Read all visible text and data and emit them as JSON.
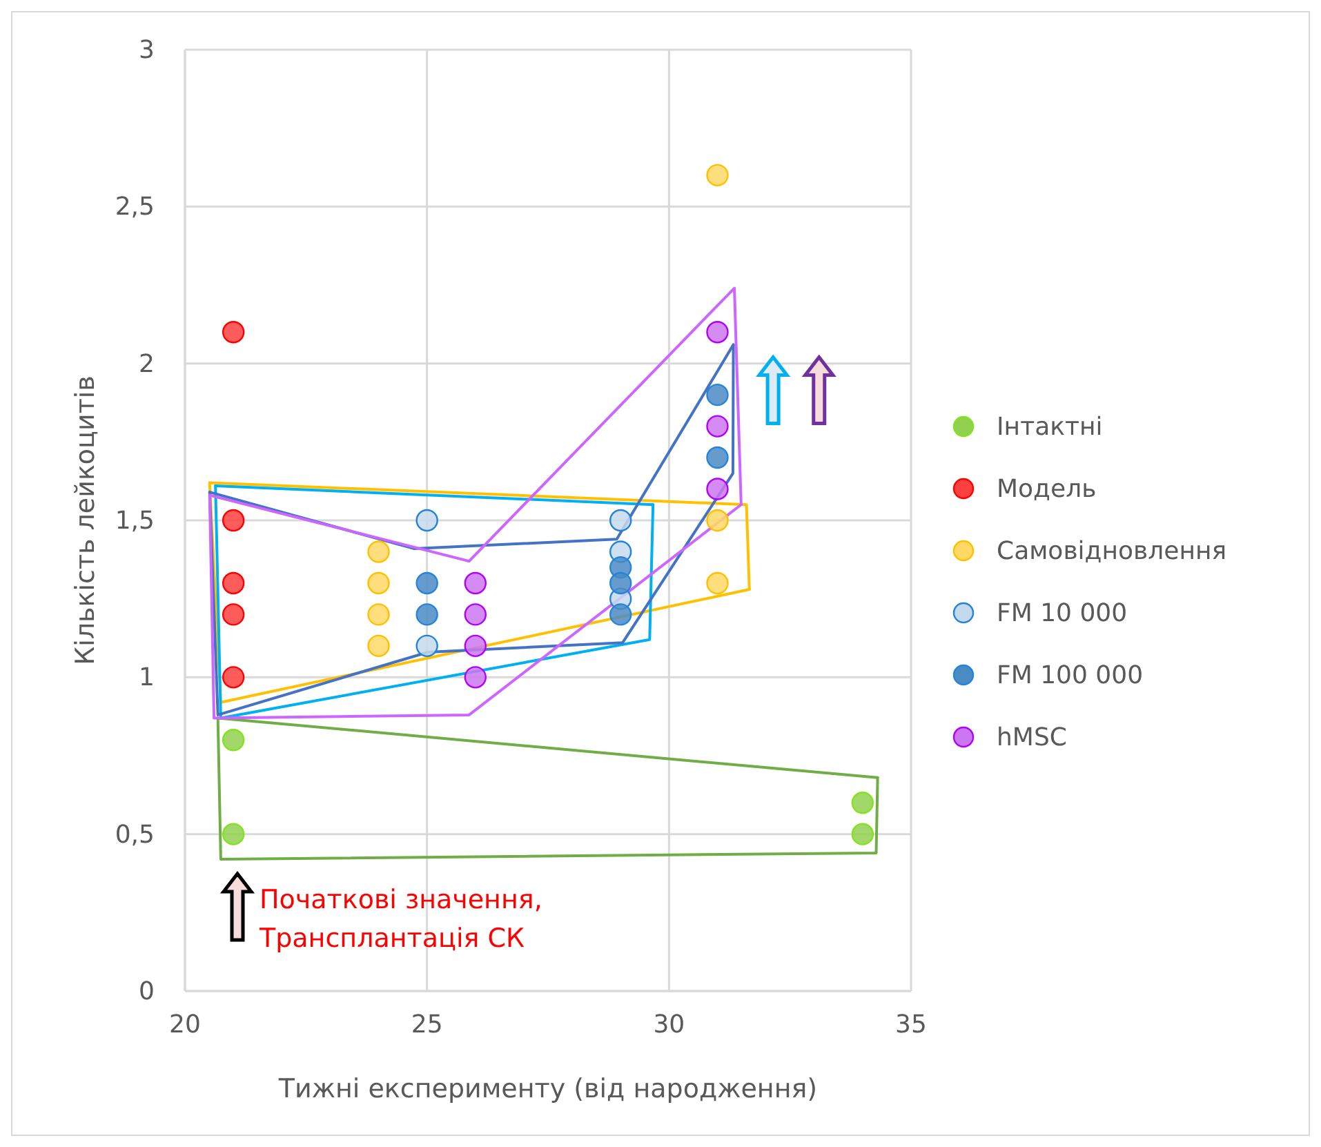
{
  "chart_data": {
    "type": "scatter",
    "xlabel": "Тижні експерименту (від народження)",
    "ylabel": "Кількість лейкоцитів",
    "xlim": [
      20,
      35
    ],
    "xticks": [
      20,
      25,
      30,
      35
    ],
    "ylim": [
      0,
      3
    ],
    "yticks": [
      0,
      {
        "value": 0.5,
        "label": "0,5"
      },
      1,
      {
        "value": 1.5,
        "label": "1,5"
      },
      2,
      {
        "value": 2.5,
        "label": "2,5"
      },
      3
    ],
    "grid": true,
    "legend": "right",
    "marker": "circle",
    "annotations": [
      "Початкові значення, Трансплантація СК"
    ],
    "series": [
      {
        "type": "line",
        "marker": "none",
        "color": "#70ad47",
        "x": [
          20.68,
          34.31
        ],
        "values": [
          0.87,
          0.68
        ]
      },
      {
        "type": "line",
        "marker": "none",
        "color": "#70ad47",
        "x": [
          20.68,
          20.74,
          34.28,
          34.31
        ],
        "values": [
          0.87,
          0.42,
          0.44,
          0.68
        ]
      },
      {
        "type": "line",
        "marker": "none",
        "color": "#ffc000",
        "x": [
          20.51,
          31.6,
          31.66
        ],
        "values": [
          1.62,
          1.55,
          1.28
        ]
      },
      {
        "type": "line",
        "marker": "none",
        "color": "#ffc000",
        "x": [
          20.51,
          20.74,
          31.66
        ],
        "values": [
          1.62,
          0.92,
          1.28
        ]
      },
      {
        "type": "line",
        "marker": "none",
        "color": "#00b0f0",
        "x": [
          20.63,
          29.67
        ],
        "values": [
          1.61,
          1.55
        ]
      },
      {
        "type": "line",
        "marker": "none",
        "color": "#00b0f0",
        "x": [
          20.63,
          20.74,
          29.6,
          29.67
        ],
        "values": [
          1.61,
          0.87,
          1.12,
          1.55
        ]
      },
      {
        "type": "line",
        "marker": "none",
        "color": "#4472c4",
        "x": [
          20.51,
          24.73,
          28.92,
          31.33
        ],
        "values": [
          1.59,
          1.41,
          1.44,
          2.06
        ]
      },
      {
        "type": "line",
        "marker": "none",
        "color": "#4472c4",
        "x": [
          20.51,
          20.68,
          25.02,
          29.04,
          31.32,
          31.33
        ],
        "values": [
          1.59,
          0.88,
          1.08,
          1.11,
          1.65,
          2.06
        ]
      },
      {
        "type": "line",
        "marker": "none",
        "color": "#cc66ff",
        "x": [
          20.51,
          25.87,
          31.35,
          31.49
        ],
        "values": [
          1.58,
          1.37,
          2.24,
          1.55
        ]
      },
      {
        "type": "line",
        "marker": "none",
        "color": "#cc66ff",
        "x": [
          20.51,
          20.6,
          25.87,
          31.49
        ],
        "values": [
          1.58,
          0.87,
          0.88,
          1.55
        ]
      },
      {
        "name": "Інтактні",
        "color": "#92d050",
        "x": [
          21,
          21,
          34,
          34
        ],
        "values": [
          0.8,
          0.5,
          0.6,
          0.5
        ]
      },
      {
        "name": "Модель",
        "color": "#ff4040",
        "x": [
          21,
          21,
          21,
          21,
          21
        ],
        "values": [
          2.1,
          1.5,
          1.3,
          1.2,
          1.0
        ]
      },
      {
        "name": "Самовідновлення",
        "color": "#ffd966",
        "x": [
          24,
          24,
          24,
          24,
          31,
          31,
          31
        ],
        "values": [
          1.4,
          1.3,
          1.2,
          1.1,
          2.6,
          1.5,
          1.3
        ]
      },
      {
        "name": "FM 10 000",
        "color": "#c5d9ec",
        "x": [
          25,
          25,
          29,
          29,
          29
        ],
        "values": [
          1.5,
          1.1,
          1.5,
          1.4,
          1.25
        ]
      },
      {
        "name": "FM 100 000",
        "color": "#4a8bc4",
        "x": [
          25,
          25,
          29,
          29,
          29,
          31,
          31
        ],
        "values": [
          1.3,
          1.2,
          1.35,
          1.3,
          1.2,
          1.9,
          1.7
        ]
      },
      {
        "name": "hMSC",
        "color": "#cc77f2",
        "x": [
          26,
          26,
          26,
          26,
          31,
          31,
          31
        ],
        "values": [
          1.3,
          1.2,
          1.1,
          1.0,
          2.1,
          1.8,
          1.6
        ]
      }
    ]
  }
}
